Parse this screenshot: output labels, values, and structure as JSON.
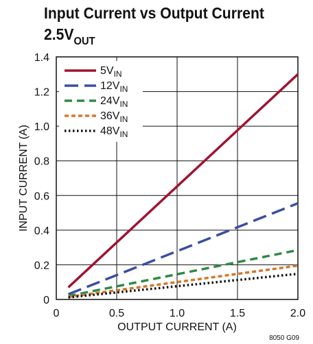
{
  "chart_data": {
    "type": "line",
    "title": {
      "line1": "Input Current vs Output Current",
      "line2_main": "2.5V",
      "line2_sub": "OUT"
    },
    "xlabel": "OUTPUT CURRENT (A)",
    "ylabel": "INPUT CURRENT (A)",
    "xlim": [
      0,
      2.0
    ],
    "ylim": [
      0,
      1.4
    ],
    "xticks": [
      {
        "v": 0,
        "label": "0"
      },
      {
        "v": 0.5,
        "label": "0.5"
      },
      {
        "v": 1.0,
        "label": "1.0"
      },
      {
        "v": 1.5,
        "label": "1.5"
      },
      {
        "v": 2.0,
        "label": "2.0"
      }
    ],
    "yticks": [
      {
        "v": 0,
        "label": "0"
      },
      {
        "v": 0.2,
        "label": "0.2"
      },
      {
        "v": 0.4,
        "label": "0.4"
      },
      {
        "v": 0.6,
        "label": "0.6"
      },
      {
        "v": 0.8,
        "label": "0.8"
      },
      {
        "v": 1.0,
        "label": "1.0"
      },
      {
        "v": 1.2,
        "label": "1.2"
      },
      {
        "v": 1.4,
        "label": "1.4"
      }
    ],
    "grid": true,
    "legend_position": "top-left",
    "footnote": "8050 G09",
    "series": [
      {
        "name_main": "5V",
        "name_sub": "IN",
        "color": "#9e1431",
        "dash": "solid",
        "x": [
          0.1,
          2.0
        ],
        "y": [
          0.07,
          1.3
        ]
      },
      {
        "name_main": "12V",
        "name_sub": "IN",
        "color": "#3a4ea3",
        "dash": "long-dash",
        "x": [
          0.1,
          2.0
        ],
        "y": [
          0.03,
          0.555
        ]
      },
      {
        "name_main": "24V",
        "name_sub": "IN",
        "color": "#2e8b46",
        "dash": "dash",
        "x": [
          0.1,
          2.0
        ],
        "y": [
          0.02,
          0.285
        ]
      },
      {
        "name_main": "36V",
        "name_sub": "IN",
        "color": "#d2782c",
        "dash": "short-dash",
        "x": [
          0.1,
          2.0
        ],
        "y": [
          0.015,
          0.195
        ]
      },
      {
        "name_main": "48V",
        "name_sub": "IN",
        "color": "#111111",
        "dash": "dot",
        "x": [
          0.1,
          2.0
        ],
        "y": [
          0.012,
          0.148
        ]
      }
    ]
  }
}
